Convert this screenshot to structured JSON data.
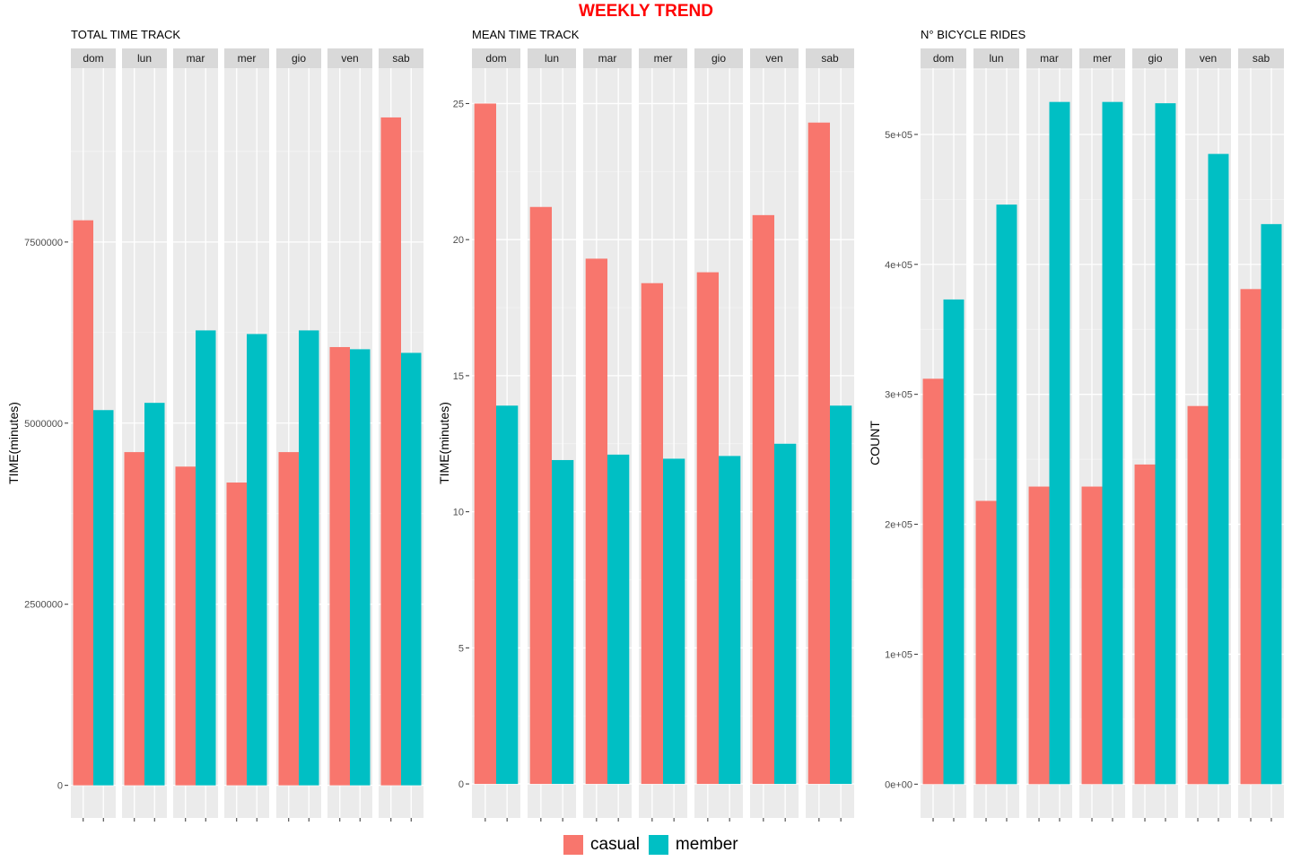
{
  "title": "WEEKLY TREND",
  "title_color": "#ff0000",
  "legend": [
    {
      "name": "casual",
      "color": "#f8766d"
    },
    {
      "name": "member",
      "color": "#00bfc4"
    }
  ],
  "chart_data": [
    {
      "type": "bar",
      "title": "TOTAL TIME TRACK",
      "xlabel": "",
      "ylabel": "TIME(minutes)",
      "facets": [
        "dom",
        "lun",
        "mar",
        "mer",
        "gio",
        "ven",
        "sab"
      ],
      "series": [
        {
          "name": "casual",
          "values": [
            7800000,
            4600000,
            4400000,
            4180000,
            4600000,
            6050000,
            9220000
          ]
        },
        {
          "name": "member",
          "values": [
            5180000,
            5280000,
            6280000,
            6230000,
            6280000,
            6020000,
            5970000
          ]
        }
      ],
      "yticks": [
        0,
        2500000,
        5000000,
        7500000
      ],
      "ytick_labels": [
        "0",
        "2500000",
        "5000000",
        "7500000"
      ],
      "ylim": [
        -450000,
        9900000
      ]
    },
    {
      "type": "bar",
      "title": "MEAN TIME TRACK",
      "xlabel": "",
      "ylabel": "TIME(minutes)",
      "facets": [
        "dom",
        "lun",
        "mar",
        "mer",
        "gio",
        "ven",
        "sab"
      ],
      "series": [
        {
          "name": "casual",
          "values": [
            25.0,
            21.2,
            19.3,
            18.4,
            18.8,
            20.9,
            24.3
          ]
        },
        {
          "name": "member",
          "values": [
            13.9,
            11.9,
            12.1,
            11.95,
            12.05,
            12.5,
            13.9
          ]
        }
      ],
      "yticks": [
        0,
        5,
        10,
        15,
        20,
        25
      ],
      "ytick_labels": [
        "0",
        "5",
        "10",
        "15",
        "20",
        "25"
      ],
      "ylim": [
        -1.25,
        26.3
      ]
    },
    {
      "type": "bar",
      "title": "N° BICYCLE RIDES",
      "xlabel": "",
      "ylabel": "COUNT",
      "facets": [
        "dom",
        "lun",
        "mar",
        "mer",
        "gio",
        "ven",
        "sab"
      ],
      "series": [
        {
          "name": "casual",
          "values": [
            312000,
            218000,
            229000,
            229000,
            246000,
            291000,
            381000
          ]
        },
        {
          "name": "member",
          "values": [
            373000,
            446000,
            525000,
            525000,
            524000,
            485000,
            431000
          ]
        }
      ],
      "yticks": [
        0,
        100000,
        200000,
        300000,
        400000,
        500000
      ],
      "ytick_labels": [
        "0e+00",
        "1e+05",
        "2e+05",
        "3e+05",
        "4e+05",
        "5e+05"
      ],
      "ylim": [
        -26000,
        551000
      ]
    }
  ]
}
